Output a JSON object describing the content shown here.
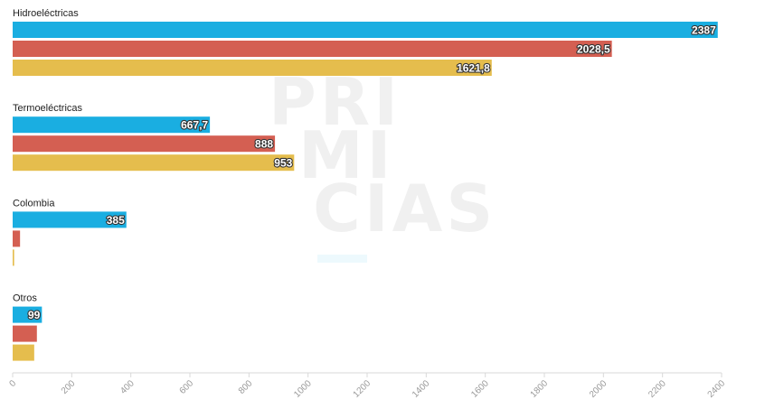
{
  "watermark": {
    "line1": "PRI",
    "line2": "MI",
    "line3": "CIAS"
  },
  "chart_data": {
    "type": "bar",
    "orientation": "horizontal",
    "categories": [
      "Hidroeléctricas",
      "Termoeléctricas",
      "Colombia",
      "Otros"
    ],
    "series": [
      {
        "color": "#1aaee1",
        "values": [
          2387,
          667.7,
          385,
          99
        ],
        "labels": [
          "2387",
          "667,7",
          "385",
          "99"
        ]
      },
      {
        "color": "#d45f52",
        "values": [
          2028.5,
          888,
          25,
          82
        ],
        "labels": [
          "2028,5",
          "888",
          "",
          ""
        ]
      },
      {
        "color": "#e5bd4d",
        "values": [
          1621.8,
          953,
          5,
          73
        ],
        "labels": [
          "1621,8",
          "953",
          "",
          ""
        ]
      }
    ],
    "xlim": [
      0,
      2400
    ],
    "xticks": [
      0,
      200,
      400,
      600,
      800,
      1000,
      1200,
      1400,
      1600,
      1800,
      2000,
      2200,
      2400
    ],
    "xtick_labels": [
      "0",
      "200",
      "400",
      "600",
      "800",
      "1000",
      "1200",
      "1400",
      "1600",
      "1800",
      "2000",
      "2200",
      "2400"
    ],
    "grid": false,
    "legend": "none",
    "title": "",
    "xlabel": "",
    "ylabel": ""
  }
}
